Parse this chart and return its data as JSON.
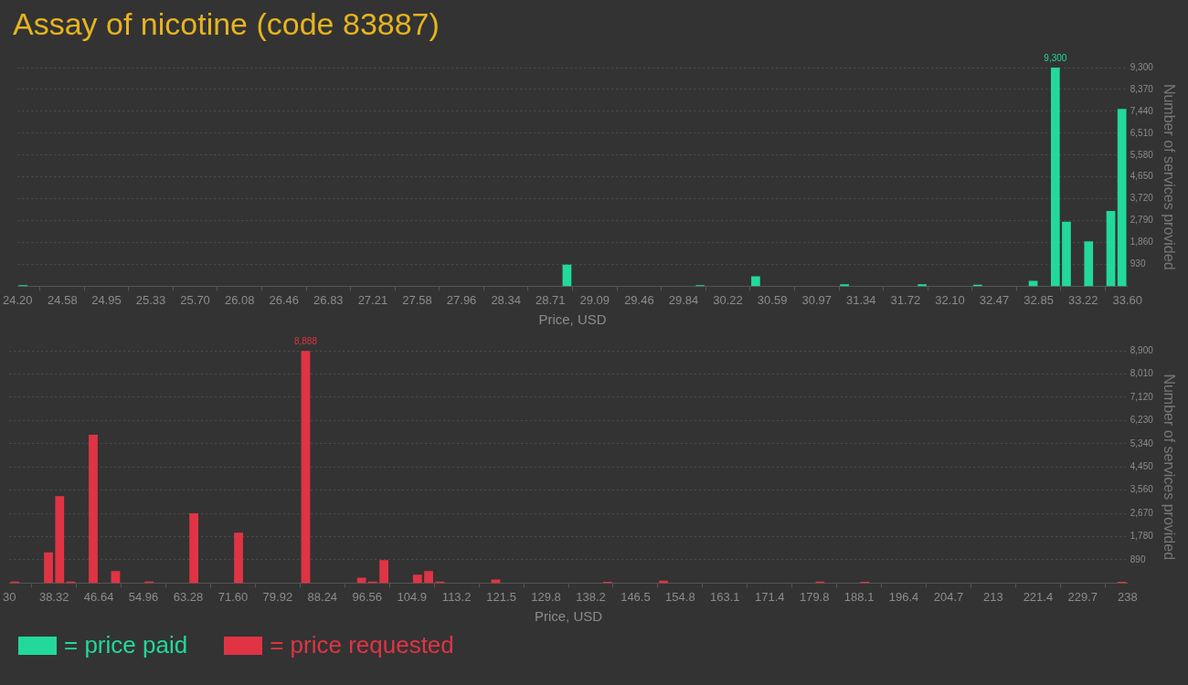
{
  "chart_data": [
    {
      "type": "histogram",
      "title": "Assay of nicotine (code 83887)",
      "xlabel": "Price, USD",
      "ylabel": "Number of services provided",
      "bins": [
        24.2,
        24.294,
        24.388,
        24.482,
        24.576,
        24.67,
        24.764,
        24.858,
        24.952,
        25.046,
        25.14,
        25.234,
        25.328,
        25.422,
        25.516,
        25.61,
        25.704,
        25.798,
        25.892,
        25.986,
        26.08,
        26.174,
        26.268,
        26.362,
        26.456,
        26.55,
        26.644,
        26.738,
        26.832,
        26.926,
        27.02,
        27.114,
        27.208,
        27.302,
        27.396,
        27.49,
        27.584,
        27.678,
        27.772,
        27.866,
        27.96,
        28.054,
        28.148,
        28.242,
        28.336,
        28.43,
        28.524,
        28.618,
        28.712,
        28.806,
        28.9,
        28.994,
        29.088,
        29.182,
        29.276,
        29.37,
        29.464,
        29.558,
        29.652,
        29.746,
        29.84,
        29.934,
        30.028,
        30.122,
        30.216,
        30.31,
        30.404,
        30.498,
        30.592,
        30.686,
        30.78,
        30.874,
        30.968,
        31.062,
        31.156,
        31.25,
        31.344,
        31.438,
        31.532,
        31.626,
        31.72,
        31.814,
        31.908,
        32.002,
        32.096,
        32.19,
        32.284,
        32.378,
        32.472,
        32.566,
        32.66,
        32.754,
        32.848,
        32.942,
        33.036,
        33.13,
        33.224,
        33.318,
        33.412,
        33.506,
        33.6
      ],
      "series": [
        {
          "name": "= price paid",
          "color": "#22d99b",
          "values": [
            40,
            0,
            0,
            0,
            0,
            0,
            0,
            0,
            0,
            0,
            0,
            0,
            0,
            0,
            0,
            0,
            0,
            0,
            0,
            0,
            0,
            0,
            0,
            0,
            0,
            0,
            0,
            0,
            0,
            0,
            0,
            0,
            0,
            0,
            0,
            0,
            0,
            0,
            0,
            0,
            0,
            0,
            0,
            0,
            0,
            0,
            0,
            0,
            0,
            920,
            0,
            0,
            0,
            0,
            0,
            0,
            0,
            0,
            0,
            0,
            0,
            40,
            0,
            0,
            0,
            0,
            420,
            0,
            0,
            0,
            0,
            0,
            0,
            0,
            80,
            0,
            0,
            0,
            0,
            0,
            0,
            80,
            0,
            0,
            0,
            0,
            60,
            0,
            0,
            0,
            0,
            230,
            0,
            9300,
            2740,
            0,
            1910,
            0,
            3200,
            7540
          ],
          "value_labels": [
            null,
            null,
            null,
            null,
            null,
            null,
            null,
            null,
            null,
            null,
            null,
            null,
            null,
            null,
            null,
            null,
            null,
            null,
            null,
            null,
            null,
            null,
            null,
            null,
            null,
            null,
            null,
            null,
            null,
            null,
            null,
            null,
            null,
            null,
            null,
            null,
            null,
            null,
            null,
            null,
            null,
            null,
            null,
            null,
            null,
            null,
            null,
            null,
            null,
            null,
            null,
            null,
            null,
            null,
            null,
            null,
            null,
            null,
            null,
            null,
            null,
            null,
            null,
            null,
            null,
            null,
            null,
            null,
            null,
            null,
            null,
            null,
            null,
            null,
            null,
            null,
            null,
            null,
            null,
            null,
            null,
            null,
            null,
            null,
            null,
            null,
            null,
            null,
            null,
            null,
            null,
            null,
            null,
            "9,300",
            null,
            null,
            null,
            null,
            null,
            null
          ]
        }
      ],
      "xlim": [
        24.2,
        33.6
      ],
      "xticks": [
        {
          "value": 24.2,
          "label": "24.20"
        },
        24.58,
        {
          "value": 24.952,
          "label": "24.95"
        },
        {
          "value": 25.328,
          "label": "25.33"
        },
        {
          "value": 25.704,
          "label": "25.70"
        },
        {
          "value": 26.08,
          "label": "26.08"
        },
        {
          "value": 26.456,
          "label": "26.46"
        },
        {
          "value": 26.832,
          "label": "26.83"
        },
        {
          "value": 27.208,
          "label": "27.21"
        },
        {
          "value": 27.584,
          "label": "27.58"
        },
        {
          "value": 27.96,
          "label": "27.96"
        },
        {
          "value": 28.336,
          "label": "28.34"
        },
        {
          "value": 28.712,
          "label": "28.71"
        },
        {
          "value": 29.088,
          "label": "29.09"
        },
        {
          "value": 29.464,
          "label": "29.46"
        },
        {
          "value": 29.84,
          "label": "29.84"
        },
        {
          "value": 30.216,
          "label": "30.22"
        },
        {
          "value": 30.592,
          "label": "30.59"
        },
        {
          "value": 30.968,
          "label": "30.97"
        },
        {
          "value": 31.344,
          "label": "31.34"
        },
        {
          "value": 31.72,
          "label": "31.72"
        },
        {
          "value": 32.096,
          "label": "32.10"
        },
        {
          "value": 32.472,
          "label": "32.47"
        },
        {
          "value": 32.848,
          "label": "32.85"
        },
        {
          "value": 33.224,
          "label": "33.22"
        },
        {
          "value": 33.6,
          "label": "33.60"
        }
      ],
      "ylim": [
        0,
        9300
      ],
      "yticks": [
        930,
        {
          "value": 1860,
          "label": "1,860"
        },
        {
          "value": 2790,
          "label": "2,790"
        },
        {
          "value": 3720,
          "label": "3,720"
        },
        {
          "value": 4650,
          "label": "4,650"
        },
        {
          "value": 5580,
          "label": "5,580"
        },
        {
          "value": 6510,
          "label": "6,510"
        },
        {
          "value": 7440,
          "label": "7,440"
        },
        {
          "value": 8370,
          "label": "8,370"
        },
        {
          "value": 9300,
          "label": "9,300"
        }
      ],
      "grid": "y",
      "legend": "bottom"
    },
    {
      "type": "histogram",
      "xlabel": "Price, USD",
      "ylabel": "Number of services provided",
      "bins": [
        30,
        32.08,
        34.16,
        36.24,
        38.32,
        40.4,
        42.48,
        44.56,
        46.64,
        48.72,
        50.8,
        52.88,
        54.96,
        57.04,
        59.12,
        61.2,
        63.28,
        65.36,
        67.44,
        69.52,
        71.6,
        73.68,
        75.76,
        77.84,
        79.92,
        82,
        84.08,
        86.16,
        88.24,
        90.32,
        92.4,
        94.48,
        96.56,
        98.64,
        100.72,
        102.8,
        104.88,
        106.96,
        109.04,
        111.12,
        113.2,
        115.28,
        117.36,
        119.44,
        121.52,
        123.6,
        125.68,
        127.76,
        129.84,
        131.92,
        134,
        136.08,
        138.16,
        140.24,
        142.32,
        144.4,
        146.48,
        148.56,
        150.64,
        152.72,
        154.8,
        156.88,
        158.96,
        161.04,
        163.12,
        165.2,
        167.28,
        169.36,
        171.44,
        173.52,
        175.6,
        177.68,
        179.76,
        181.84,
        183.92,
        186,
        188.08,
        190.16,
        192.24,
        194.32,
        196.4,
        198.48,
        200.56,
        202.64,
        204.72,
        206.8,
        208.88,
        210.96,
        213.04,
        215.12,
        217.2,
        219.28,
        221.36,
        223.44,
        225.52,
        227.6,
        229.68,
        231.76,
        233.84,
        235.92,
        238
      ],
      "series": [
        {
          "name": "= price requested",
          "color": "#e03444",
          "values": [
            60,
            0,
            0,
            1180,
            3330,
            60,
            0,
            5680,
            0,
            460,
            0,
            0,
            60,
            0,
            0,
            0,
            2670,
            0,
            0,
            0,
            1930,
            0,
            0,
            0,
            0,
            0,
            8888,
            0,
            0,
            0,
            0,
            210,
            60,
            880,
            0,
            0,
            320,
            460,
            60,
            0,
            0,
            0,
            0,
            140,
            0,
            0,
            0,
            0,
            0,
            0,
            0,
            0,
            0,
            50,
            0,
            0,
            0,
            0,
            90,
            0,
            0,
            0,
            0,
            0,
            0,
            0,
            0,
            0,
            0,
            0,
            0,
            0,
            60,
            0,
            0,
            0,
            50,
            0,
            0,
            0,
            0,
            0,
            0,
            0,
            0,
            0,
            0,
            0,
            0,
            0,
            0,
            0,
            0,
            0,
            0,
            0,
            0,
            0,
            0,
            50
          ],
          "value_labels": [
            null,
            null,
            null,
            null,
            null,
            null,
            null,
            null,
            null,
            null,
            null,
            null,
            null,
            null,
            null,
            null,
            null,
            null,
            null,
            null,
            null,
            null,
            null,
            null,
            null,
            null,
            "8,888",
            null,
            null,
            null,
            null,
            null,
            null,
            null,
            null,
            null,
            null,
            null,
            null,
            null,
            null,
            null,
            null,
            null,
            null,
            null,
            null,
            null,
            null,
            null,
            null,
            null,
            null,
            null,
            null,
            null,
            null,
            null,
            null,
            null,
            null,
            null,
            null,
            null,
            null,
            null,
            null,
            null,
            null,
            null,
            null,
            null,
            null,
            null,
            null,
            null,
            null,
            null,
            null,
            null,
            null,
            null,
            null,
            null,
            null,
            null,
            null,
            null,
            null,
            null,
            null,
            null,
            null,
            null,
            null,
            null,
            null,
            null,
            null,
            null
          ]
        }
      ],
      "xlim": [
        30,
        238
      ],
      "xticks": [
        30,
        38.32,
        46.64,
        54.96,
        63.28,
        {
          "value": 71.6,
          "label": "71.60"
        },
        79.92,
        88.24,
        96.56,
        {
          "value": 104.88,
          "label": "104.9"
        },
        113.2,
        {
          "value": 121.52,
          "label": "121.5"
        },
        {
          "value": 129.84,
          "label": "129.8"
        },
        {
          "value": 138.16,
          "label": "138.2"
        },
        {
          "value": 146.48,
          "label": "146.5"
        },
        154.8,
        {
          "value": 163.12,
          "label": "163.1"
        },
        {
          "value": 171.44,
          "label": "171.4"
        },
        {
          "value": 179.76,
          "label": "179.8"
        },
        {
          "value": 188.08,
          "label": "188.1"
        },
        196.4,
        {
          "value": 204.72,
          "label": "204.7"
        },
        {
          "value": 213.04,
          "label": "213"
        },
        {
          "value": 221.36,
          "label": "221.4"
        },
        {
          "value": 229.68,
          "label": "229.7"
        },
        238
      ],
      "ylim": [
        0,
        8900
      ],
      "yticks": [
        890,
        {
          "value": 1780,
          "label": "1,780"
        },
        {
          "value": 2670,
          "label": "2,670"
        },
        {
          "value": 3560,
          "label": "3,560"
        },
        {
          "value": 4450,
          "label": "4,450"
        },
        {
          "value": 5340,
          "label": "5,340"
        },
        {
          "value": 6230,
          "label": "6,230"
        },
        {
          "value": 7120,
          "label": "7,120"
        },
        {
          "value": 8010,
          "label": "8,010"
        },
        {
          "value": 8900,
          "label": "8,900"
        }
      ],
      "grid": "y",
      "legend": "bottom"
    }
  ]
}
